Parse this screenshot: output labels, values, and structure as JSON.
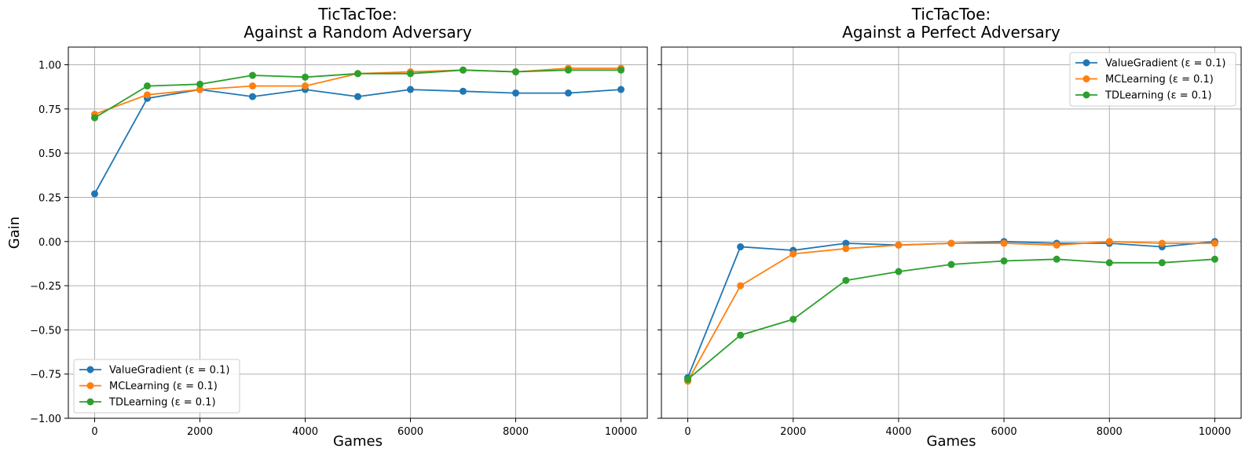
{
  "colors": {
    "ValueGradient": "#1f77b4",
    "MCLearning": "#ff7f0e",
    "TDLearning": "#2ca02c",
    "grid": "#b0b0b0"
  },
  "chart_data": [
    {
      "type": "line",
      "title": "TicTacToe:\nAgainst a Random Adversary",
      "title_lines": [
        "TicTacToe:",
        "Against a Random Adversary"
      ],
      "xlabel": "Games",
      "ylabel": "Gain",
      "xlim": [
        -500,
        10500
      ],
      "ylim": [
        -1.0,
        1.1
      ],
      "xticks": [
        0,
        2000,
        4000,
        6000,
        8000,
        10000
      ],
      "xtick_labels": [
        "0",
        "2000",
        "4000",
        "6000",
        "8000",
        "10000"
      ],
      "yticks": [
        -1.0,
        -0.75,
        -0.5,
        -0.25,
        0.0,
        0.25,
        0.5,
        0.75,
        1.0
      ],
      "ytick_labels": [
        "−1.00",
        "−0.75",
        "−0.50",
        "−0.25",
        "0.00",
        "0.25",
        "0.50",
        "0.75",
        "1.00"
      ],
      "grid": true,
      "legend_position": "lower-left",
      "x": [
        0,
        1000,
        2000,
        3000,
        4000,
        5000,
        6000,
        7000,
        8000,
        9000,
        10000
      ],
      "series": [
        {
          "name": "ValueGradient (ε = 0.1)",
          "key": "ValueGradient",
          "values": [
            0.27,
            0.81,
            0.86,
            0.82,
            0.86,
            0.82,
            0.86,
            0.85,
            0.84,
            0.84,
            0.86
          ]
        },
        {
          "name": "MCLearning (ε = 0.1)",
          "key": "MCLearning",
          "values": [
            0.72,
            0.83,
            0.86,
            0.88,
            0.88,
            0.95,
            0.96,
            0.97,
            0.96,
            0.98,
            0.98
          ]
        },
        {
          "name": "TDLearning (ε = 0.1)",
          "key": "TDLearning",
          "values": [
            0.7,
            0.88,
            0.89,
            0.94,
            0.93,
            0.95,
            0.95,
            0.97,
            0.96,
            0.97,
            0.97
          ]
        }
      ]
    },
    {
      "type": "line",
      "title": "TicTacToe:\nAgainst a Perfect Adversary",
      "title_lines": [
        "TicTacToe:",
        "Against a Perfect Adversary"
      ],
      "xlabel": "Games",
      "ylabel": "",
      "xlim": [
        -500,
        10500
      ],
      "ylim": [
        -1.0,
        1.1
      ],
      "xticks": [
        0,
        2000,
        4000,
        6000,
        8000,
        10000
      ],
      "xtick_labels": [
        "0",
        "2000",
        "4000",
        "6000",
        "8000",
        "10000"
      ],
      "yticks": [
        -1.0,
        -0.75,
        -0.5,
        -0.25,
        0.0,
        0.25,
        0.5,
        0.75,
        1.0
      ],
      "ytick_labels": [],
      "grid": true,
      "legend_position": "upper-right",
      "x": [
        0,
        1000,
        2000,
        3000,
        4000,
        5000,
        6000,
        7000,
        8000,
        9000,
        10000
      ],
      "series": [
        {
          "name": "ValueGradient (ε = 0.1)",
          "key": "ValueGradient",
          "values": [
            -0.77,
            -0.03,
            -0.05,
            -0.01,
            -0.02,
            -0.01,
            0.0,
            -0.01,
            -0.01,
            -0.03,
            0.0
          ]
        },
        {
          "name": "MCLearning (ε = 0.1)",
          "key": "MCLearning",
          "values": [
            -0.79,
            -0.25,
            -0.07,
            -0.04,
            -0.02,
            -0.01,
            -0.01,
            -0.02,
            0.0,
            -0.01,
            -0.01
          ]
        },
        {
          "name": "TDLearning (ε = 0.1)",
          "key": "TDLearning",
          "values": [
            -0.78,
            -0.53,
            -0.44,
            -0.22,
            -0.17,
            -0.13,
            -0.11,
            -0.1,
            -0.12,
            -0.12,
            -0.1
          ]
        }
      ]
    }
  ]
}
